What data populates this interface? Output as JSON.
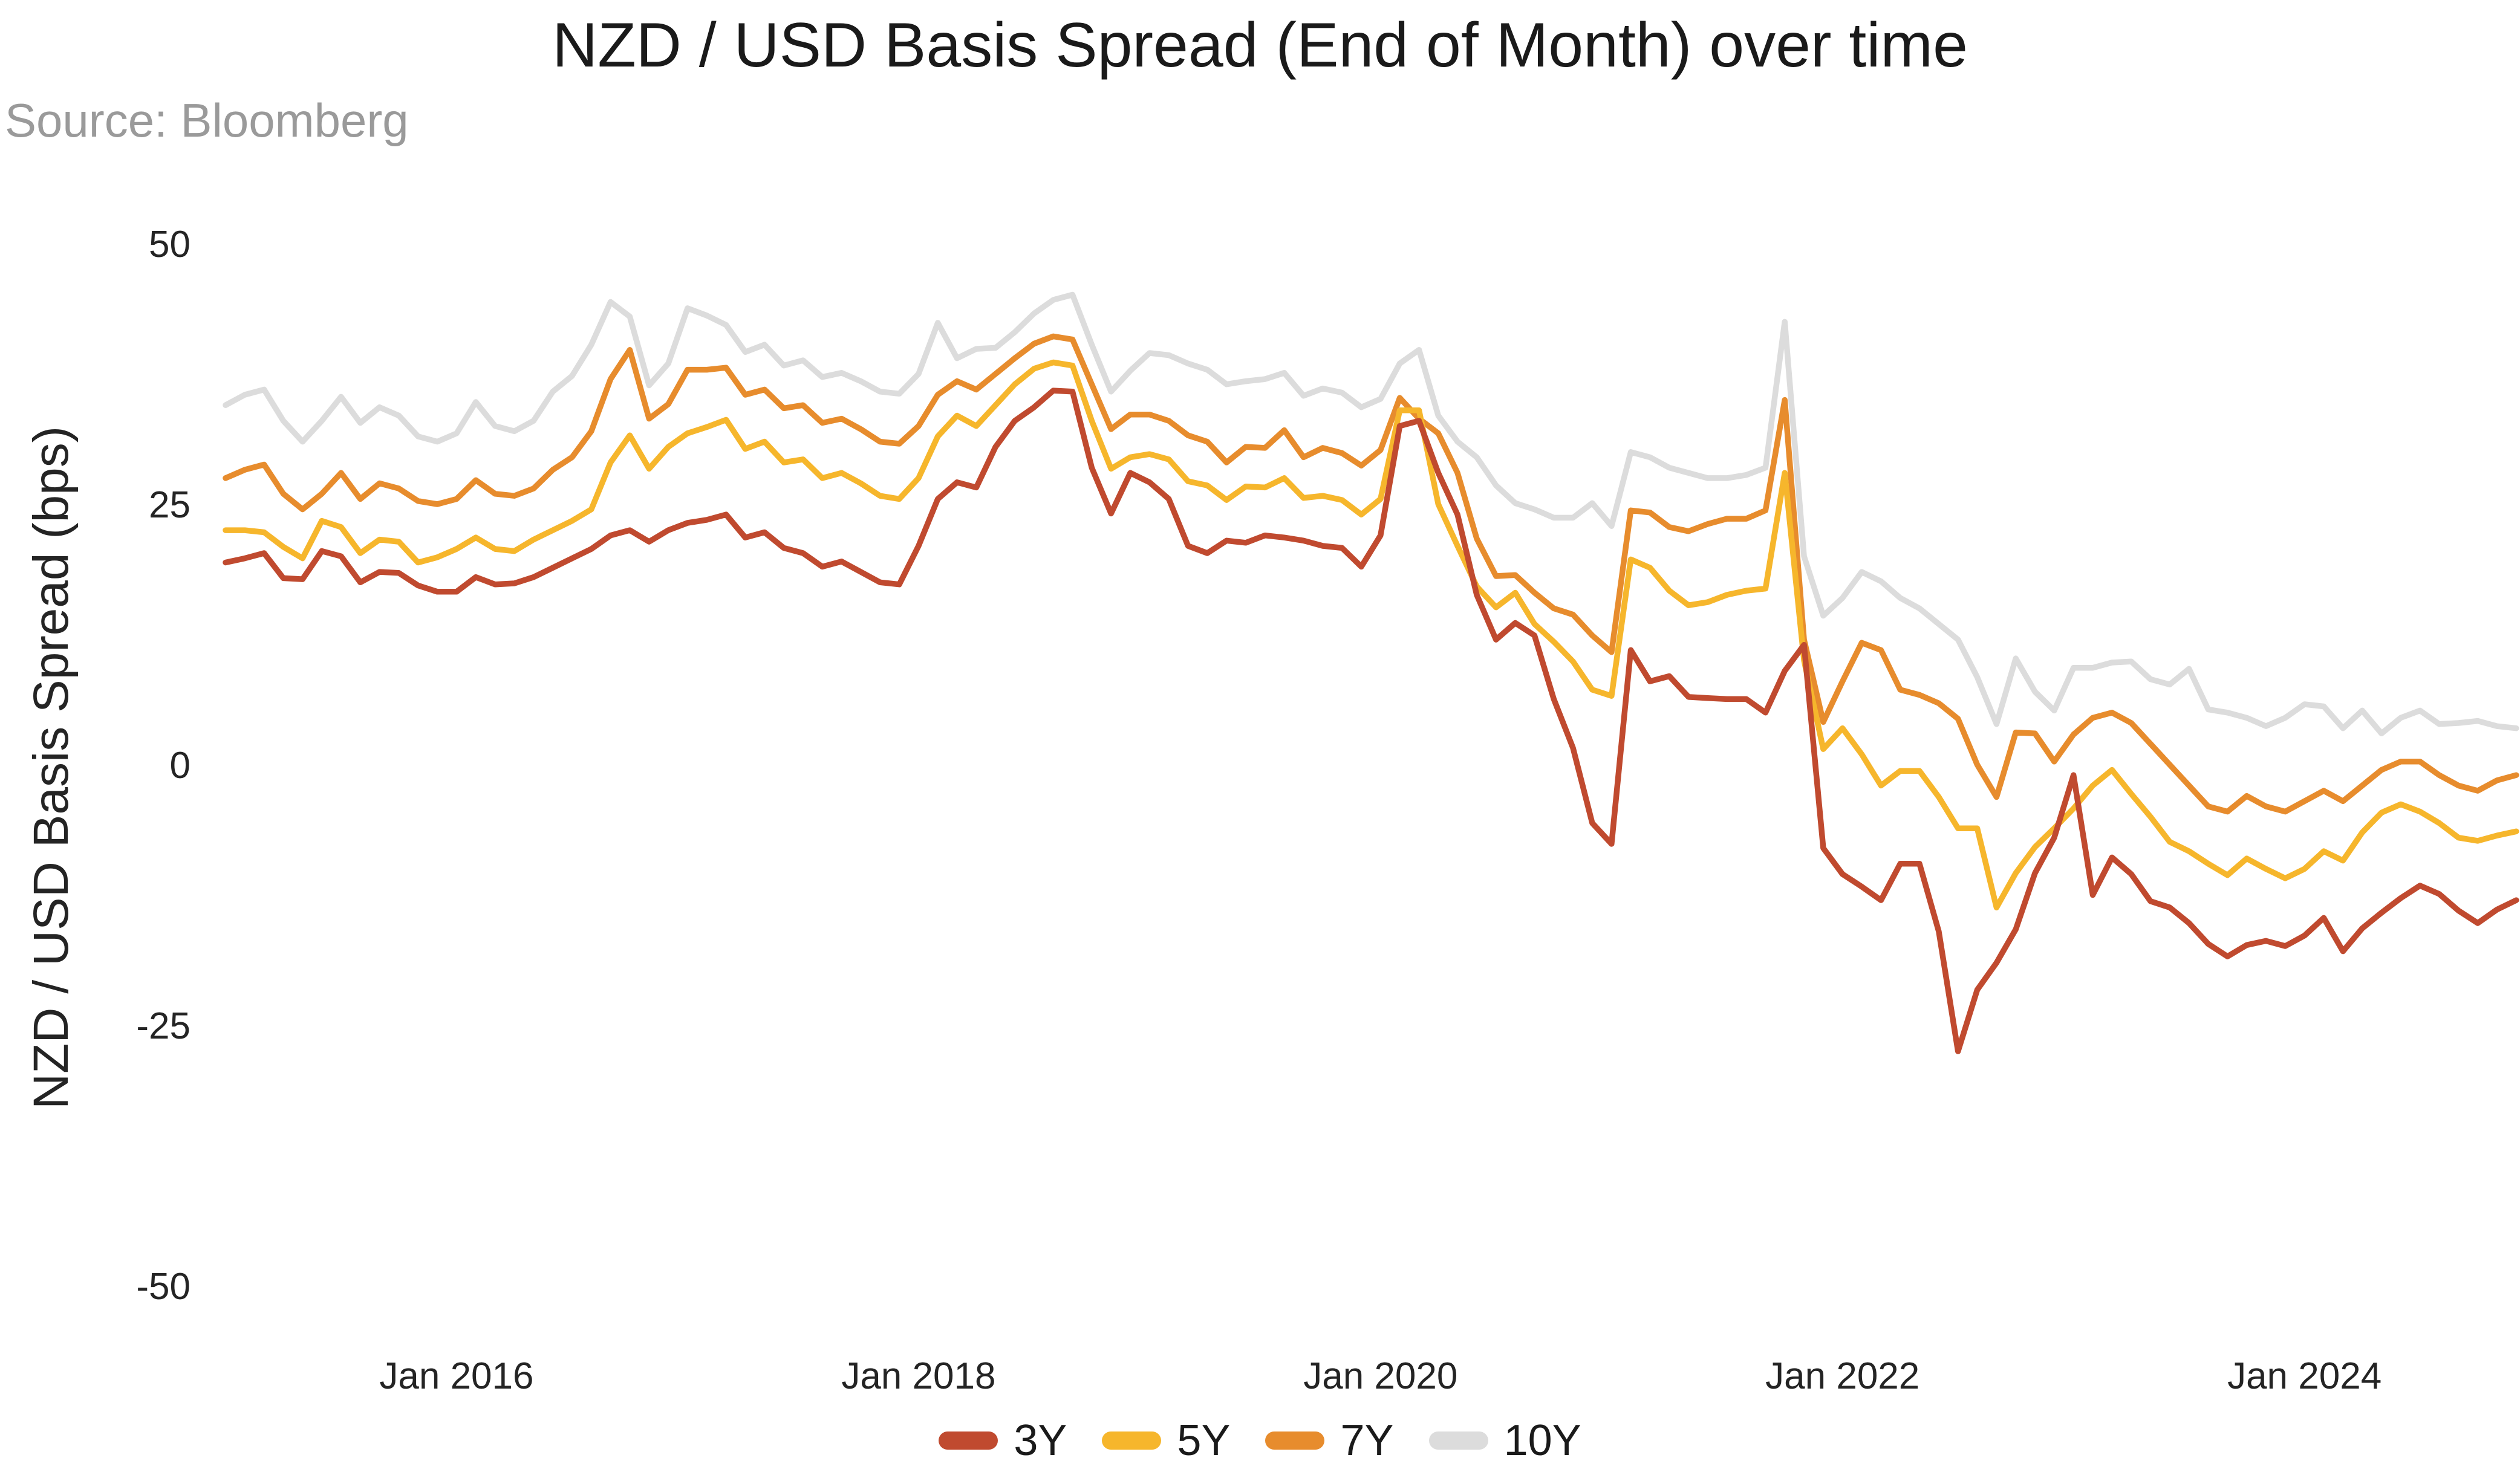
{
  "chart": {
    "title": "NZD / USD Basis Spread (End of Month) over time",
    "source": "Source: Bloomberg",
    "y_axis_label": "NZD / USD Basis Spread (bps)"
  },
  "chart_data": {
    "type": "line",
    "title": "NZD / USD Basis Spread (End of Month) over time",
    "xlabel": "",
    "ylabel": "NZD / USD Basis Spread (bps)",
    "x_unit": "month",
    "x_start": "2015-01",
    "x_end": "2024-12",
    "n_points": 120,
    "x_tick_labels": [
      "Jan 2016",
      "Jan 2018",
      "Jan 2020",
      "Jan 2022",
      "Jan 2024"
    ],
    "y_ticks": [
      50,
      25,
      0,
      -25,
      -50
    ],
    "ylim": [
      -55,
      53
    ],
    "grid": false,
    "legend_position": "bottom",
    "background": "#ffffff",
    "series": [
      {
        "name": "3Y",
        "color": "#c04a2f",
        "values": [
          19.4,
          19.8,
          20.3,
          17.9,
          17.8,
          20.5,
          20,
          17.5,
          18.5,
          18.4,
          17.2,
          16.6,
          16.6,
          18,
          17.3,
          17.4,
          18,
          18.9,
          19.8,
          20.7,
          22,
          22.5,
          21.4,
          22.5,
          23.2,
          23.5,
          24,
          21.8,
          22.3,
          20.8,
          20.3,
          19,
          19.5,
          18.5,
          17.5,
          17.3,
          21,
          25.5,
          27.1,
          26.6,
          30.5,
          33,
          34.3,
          35.9,
          35.8,
          28.5,
          24.1,
          28,
          27.1,
          25.5,
          21,
          20.3,
          21.5,
          21.3,
          22,
          21.8,
          21.5,
          21,
          20.8,
          19,
          22,
          32.5,
          33,
          28,
          24,
          16.3,
          12,
          13.6,
          12.4,
          6.3,
          1.6,
          -5.6,
          -7.6,
          11,
          8,
          8.5,
          6.5,
          6.4,
          6.3,
          6.3,
          5,
          9,
          11.5,
          -8,
          -10.5,
          -11.7,
          -13,
          -9.5,
          -9.5,
          -16,
          -27.5,
          -21.6,
          -19,
          -15.8,
          -10.4,
          -7,
          -1,
          -12.5,
          -8.9,
          -10.5,
          -13.1,
          -13.7,
          -15.2,
          -17.2,
          -18.4,
          -17.3,
          -16.9,
          -17.4,
          -16.4,
          -14.7,
          -17.9,
          -15.7,
          -14.2,
          -12.8,
          -11.6,
          -12.4,
          -14,
          -15.2,
          -13.9,
          -13
        ]
      },
      {
        "name": "5Y",
        "color": "#f6b62c",
        "values": [
          22.5,
          22.5,
          22.3,
          20.9,
          19.8,
          23.4,
          22.8,
          20.3,
          21.6,
          21.4,
          19.4,
          19.9,
          20.7,
          21.8,
          20.7,
          20.5,
          21.6,
          22.5,
          23.4,
          24.5,
          29,
          31.6,
          28.4,
          30.5,
          31.8,
          32.4,
          33.1,
          30.3,
          31,
          29,
          29.3,
          27.5,
          28,
          27,
          25.8,
          25.5,
          27.5,
          31.5,
          33.5,
          32.5,
          34.5,
          36.5,
          38,
          38.6,
          38.3,
          33,
          28.4,
          29.5,
          29.8,
          29.3,
          27.2,
          26.8,
          25.4,
          26.7,
          26.6,
          27.5,
          25.6,
          25.8,
          25.4,
          24,
          25.5,
          34,
          34,
          25,
          21,
          17.1,
          15.1,
          16.5,
          13.5,
          11.8,
          9.9,
          7.2,
          6.6,
          19.7,
          18.9,
          16.7,
          15.3,
          15.6,
          16.3,
          16.7,
          16.9,
          28,
          10,
          1.5,
          3.5,
          1,
          -2,
          -0.6,
          -0.6,
          -3.1,
          -6.1,
          -6.1,
          -13.7,
          -10.4,
          -7.9,
          -6.1,
          -4.2,
          -2,
          -0.5,
          -2.8,
          -5,
          -7.4,
          -8.3,
          -9.5,
          -10.6,
          -9,
          -10,
          -10.9,
          -10,
          -8.3,
          -9.2,
          -6.5,
          -4.6,
          -3.8,
          -4.5,
          -5.6,
          -7,
          -7.3,
          -6.8,
          -6.4
        ]
      },
      {
        "name": "7Y",
        "color": "#e78c2d",
        "values": [
          27.5,
          28.3,
          28.8,
          26,
          24.5,
          26,
          28,
          25.5,
          27,
          26.5,
          25.3,
          25,
          25.5,
          27.3,
          26,
          25.8,
          26.5,
          28.3,
          29.5,
          32,
          37,
          39.8,
          33.2,
          34.6,
          37.9,
          37.9,
          38.1,
          35.5,
          36,
          34.2,
          34.5,
          32.8,
          33.2,
          32.2,
          31,
          30.8,
          32.5,
          35.5,
          36.8,
          36,
          37.5,
          39,
          40.4,
          41.1,
          40.8,
          36.5,
          32.2,
          33.6,
          33.6,
          33,
          31.6,
          31,
          29,
          30.5,
          30.4,
          32.1,
          29.5,
          30.4,
          29.9,
          28.7,
          30.2,
          35.2,
          33.2,
          31.8,
          28,
          21.7,
          18.1,
          18.2,
          16.5,
          15,
          14.4,
          12.4,
          10.8,
          24.4,
          24.2,
          22.8,
          22.4,
          23.1,
          23.6,
          23.6,
          24.4,
          35,
          12,
          4.1,
          8,
          11.7,
          11,
          7.2,
          6.7,
          5.9,
          4.4,
          0,
          -3.1,
          3.1,
          3,
          0.3,
          2.9,
          4.5,
          5,
          4,
          2,
          0,
          -2,
          -4,
          -4.5,
          -3,
          -4,
          -4.5,
          -3.5,
          -2.5,
          -3.5,
          -2,
          -0.5,
          0.3,
          0.3,
          -1,
          -2,
          -2.5,
          -1.5,
          -1
        ]
      },
      {
        "name": "10Y",
        "color": "#dcdcdc",
        "values": [
          34.5,
          35.5,
          36,
          33,
          31,
          33,
          35.3,
          32.8,
          34.3,
          33.5,
          31.5,
          31,
          31.8,
          34.8,
          32.5,
          32,
          33,
          35.8,
          37.3,
          40.3,
          44.4,
          43,
          36.4,
          38.5,
          43.8,
          43.1,
          42.2,
          39.6,
          40.3,
          38.3,
          38.8,
          37.2,
          37.6,
          36.8,
          35.8,
          35.6,
          37.5,
          42.4,
          39,
          39.9,
          40,
          41.5,
          43.3,
          44.6,
          45.1,
          40.3,
          35.8,
          37.8,
          39.5,
          39.3,
          38.5,
          37.9,
          36.5,
          36.8,
          37,
          37.6,
          35.4,
          36.1,
          35.7,
          34.3,
          35.1,
          38.5,
          39.8,
          33.5,
          31,
          29.5,
          26.8,
          25.1,
          24.5,
          23.7,
          23.7,
          25.1,
          22.9,
          30,
          29.5,
          28.5,
          28,
          27.5,
          27.5,
          27.8,
          28.5,
          42.5,
          20,
          14.3,
          16,
          18.5,
          17.6,
          16,
          15,
          13.5,
          12,
          8.4,
          3.9,
          10.2,
          7,
          5.2,
          9.3,
          9.3,
          9.8,
          9.9,
          8.2,
          7.7,
          9.2,
          5.3,
          5,
          4.5,
          3.7,
          4.5,
          5.8,
          5.6,
          3.5,
          5.2,
          3,
          4.5,
          5.2,
          3.9,
          4,
          4.2,
          3.7,
          3.5
        ]
      }
    ]
  }
}
